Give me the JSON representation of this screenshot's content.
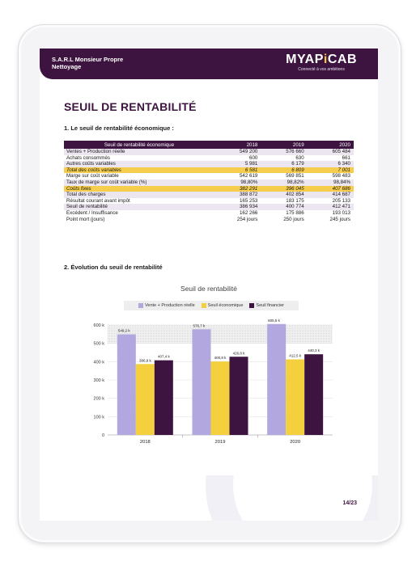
{
  "header": {
    "company_line1": "S.A.R.L Monsieur Propre",
    "company_line2": "Nettoyage",
    "logo_text_a": "MYAP",
    "logo_text_i": "i",
    "logo_text_b": "CAB",
    "logo_tagline": "Connecté à vos ambitions"
  },
  "page_title": "SEUIL DE RENTABILITÉ",
  "section1": "1.   Le seuil de rentabilité économique :",
  "section2": "2.   Évolution du seuil de rentabilité",
  "table": {
    "headers": [
      "Seuil de rentabilité économique",
      "2018",
      "2019",
      "2020"
    ],
    "rows": [
      {
        "label": "Ventes + Production réelle",
        "values": [
          "549 200",
          "576 660",
          "605 484"
        ],
        "style": "alt"
      },
      {
        "label": "Achats consommés",
        "values": [
          "600",
          "630",
          "661"
        ],
        "style": ""
      },
      {
        "label": "Autres coûts variables",
        "values": [
          "5 981",
          "6 179",
          "6 340"
        ],
        "style": "alt"
      },
      {
        "label": "Total des coûts variables",
        "values": [
          "6 581",
          "6 809",
          "7 001"
        ],
        "style": "hl"
      },
      {
        "label": "Marge sur coût variable",
        "values": [
          "542 619",
          "569 851",
          "598 483"
        ],
        "style": ""
      },
      {
        "label": "Taux de marge sur coût variable (%)",
        "values": [
          "98,80%",
          "98,82%",
          "98,84%"
        ],
        "style": "alt"
      },
      {
        "label": "Coûts fixes",
        "values": [
          "382 291",
          "396 045",
          "407 686"
        ],
        "style": "hl"
      },
      {
        "label": "Total des charges",
        "values": [
          "388 872",
          "402 854",
          "414 687"
        ],
        "style": "alt"
      },
      {
        "label": "Résultat courant avant impôt",
        "values": [
          "165 253",
          "183 175",
          "205 133"
        ],
        "style": ""
      },
      {
        "label": "Seuil de rentabilité",
        "values": [
          "386 934",
          "400 774",
          "412 471"
        ],
        "style": "alt"
      },
      {
        "label": "Excédent / Insuffisance",
        "values": [
          "162 266",
          "175 886",
          "193 013"
        ],
        "style": ""
      },
      {
        "label": "Point mort (jours)",
        "values": [
          "254 jours",
          "250 jours",
          "245 jours"
        ],
        "style": ""
      }
    ]
  },
  "chart_data": {
    "type": "bar",
    "title": "Seuil de rentabilité",
    "categories": [
      "2018",
      "2019",
      "2020"
    ],
    "series": [
      {
        "name": "Vente + Production réelle",
        "values": [
          549.2,
          576.7,
          605.5
        ],
        "labels": [
          "549,2 k",
          "576,7 k",
          "605,5 k"
        ],
        "color": "#b3a7e0"
      },
      {
        "name": "Seuil économique",
        "values": [
          386.9,
          400.8,
          412.5
        ],
        "labels": [
          "386,9 k",
          "400,8 k",
          "412,5 k"
        ],
        "color": "#f5d03e"
      },
      {
        "name": "Seuil financier",
        "values": [
          407.4,
          426.8,
          440.3
        ],
        "labels": [
          "407,4 k",
          "426,8 k",
          "440,3 k"
        ],
        "color": "#3d1440"
      }
    ],
    "yticks": [
      "0",
      "100 k",
      "200 k",
      "300 k",
      "400 k",
      "500 k",
      "600 k"
    ],
    "ylim": [
      0,
      600
    ],
    "grid": true,
    "legend_position": "top"
  },
  "page_number": "14/23"
}
